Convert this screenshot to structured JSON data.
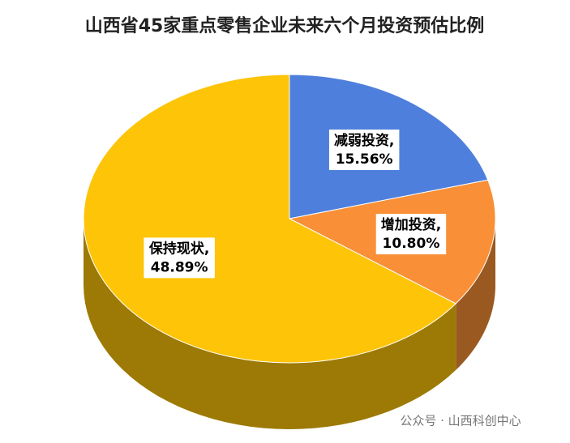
{
  "chart_data": {
    "type": "pie3d",
    "title": "山西省45家重点零售企业未来六个月投资预估比例",
    "categories": [
      "减弱投资,",
      "增加投资,",
      "保持现状,"
    ],
    "values": [
      15.56,
      10.8,
      48.89
    ],
    "value_labels": [
      "15.56%",
      "10.80%",
      "48.89%"
    ],
    "colors": [
      "#4f7fdc",
      "#f98f36",
      "#fdc408"
    ],
    "watermark": "公众号 · 山西科创中心"
  }
}
